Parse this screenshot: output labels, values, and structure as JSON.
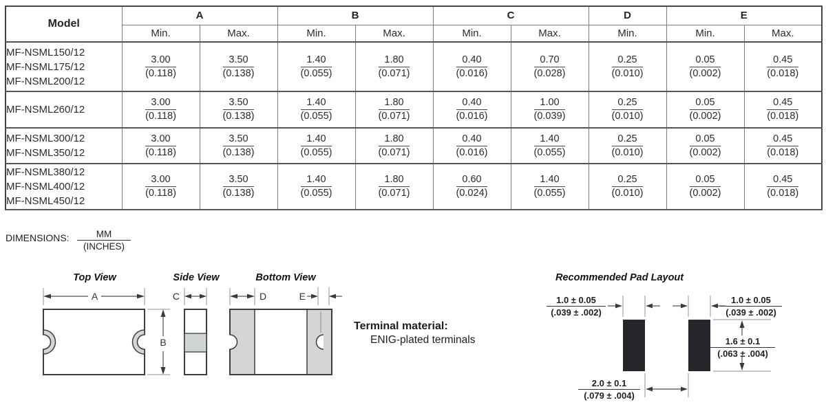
{
  "table": {
    "model_header": "Model",
    "col_groups": [
      {
        "label": "A",
        "subs": [
          "Min.",
          "Max."
        ]
      },
      {
        "label": "B",
        "subs": [
          "Min.",
          "Max."
        ]
      },
      {
        "label": "C",
        "subs": [
          "Min.",
          "Max."
        ]
      },
      {
        "label": "D",
        "subs": [
          "Min."
        ]
      },
      {
        "label": "E",
        "subs": [
          "Min.",
          "Max."
        ]
      }
    ],
    "rows": [
      {
        "models": [
          "MF-NSML150/12",
          "MF-NSML175/12",
          "MF-NSML200/12"
        ],
        "values": [
          {
            "mm": "3.00",
            "in": "(0.118)"
          },
          {
            "mm": "3.50",
            "in": "(0.138)"
          },
          {
            "mm": "1.40",
            "in": "(0.055)"
          },
          {
            "mm": "1.80",
            "in": "(0.071)"
          },
          {
            "mm": "0.40",
            "in": "(0.016)"
          },
          {
            "mm": "0.70",
            "in": "(0.028)"
          },
          {
            "mm": "0.25",
            "in": "(0.010)"
          },
          {
            "mm": "0.05",
            "in": "(0.002)"
          },
          {
            "mm": "0.45",
            "in": "(0.018)"
          }
        ]
      },
      {
        "models": [
          "MF-NSML260/12"
        ],
        "values": [
          {
            "mm": "3.00",
            "in": "(0.118)"
          },
          {
            "mm": "3.50",
            "in": "(0.138)"
          },
          {
            "mm": "1.40",
            "in": "(0.055)"
          },
          {
            "mm": "1.80",
            "in": "(0.071)"
          },
          {
            "mm": "0.40",
            "in": "(0.016)"
          },
          {
            "mm": "1.00",
            "in": "(0.039)"
          },
          {
            "mm": "0.25",
            "in": "(0.010)"
          },
          {
            "mm": "0.05",
            "in": "(0.002)"
          },
          {
            "mm": "0.45",
            "in": "(0.018)"
          }
        ]
      },
      {
        "models": [
          "MF-NSML300/12",
          "MF-NSML350/12"
        ],
        "values": [
          {
            "mm": "3.00",
            "in": "(0.118)"
          },
          {
            "mm": "3.50",
            "in": "(0.138)"
          },
          {
            "mm": "1.40",
            "in": "(0.055)"
          },
          {
            "mm": "1.80",
            "in": "(0.071)"
          },
          {
            "mm": "0.40",
            "in": "(0.016)"
          },
          {
            "mm": "1.40",
            "in": "(0.055)"
          },
          {
            "mm": "0.25",
            "in": "(0.010)"
          },
          {
            "mm": "0.05",
            "in": "(0.002)"
          },
          {
            "mm": "0.45",
            "in": "(0.018)"
          }
        ]
      },
      {
        "models": [
          "MF-NSML380/12",
          "MF-NSML400/12",
          "MF-NSML450/12"
        ],
        "values": [
          {
            "mm": "3.00",
            "in": "(0.118)"
          },
          {
            "mm": "3.50",
            "in": "(0.138)"
          },
          {
            "mm": "1.40",
            "in": "(0.055)"
          },
          {
            "mm": "1.80",
            "in": "(0.071)"
          },
          {
            "mm": "0.60",
            "in": "(0.024)"
          },
          {
            "mm": "1.40",
            "in": "(0.055)"
          },
          {
            "mm": "0.25",
            "in": "(0.010)"
          },
          {
            "mm": "0.05",
            "in": "(0.002)"
          },
          {
            "mm": "0.45",
            "in": "(0.018)"
          }
        ]
      }
    ]
  },
  "dimensions_note": {
    "label": "DIMENSIONS:",
    "mm": "MM",
    "inches": "(INCHES)"
  },
  "drawings": {
    "top_view_title": "Top View",
    "side_view_title": "Side View",
    "bottom_view_title": "Bottom View",
    "pad_layout_title": "Recommended Pad Layout",
    "dim_a": "A",
    "dim_b": "B",
    "dim_c": "C",
    "dim_d": "D",
    "dim_e": "E",
    "terminal_material_label": "Terminal material:",
    "terminal_material_value": "ENIG-plated terminals",
    "pad_dims": {
      "left_width": {
        "mm": "1.0 ± 0.05",
        "in": "(.039 ± .002)"
      },
      "right_width": {
        "mm": "1.0 ± 0.05",
        "in": "(.039 ± .002)"
      },
      "height": {
        "mm": "1.6 ± 0.1",
        "in": "(.063 ± .004)"
      },
      "gap": {
        "mm": "2.0 ± 0.1",
        "in": "(.079 ± .004)"
      }
    }
  }
}
